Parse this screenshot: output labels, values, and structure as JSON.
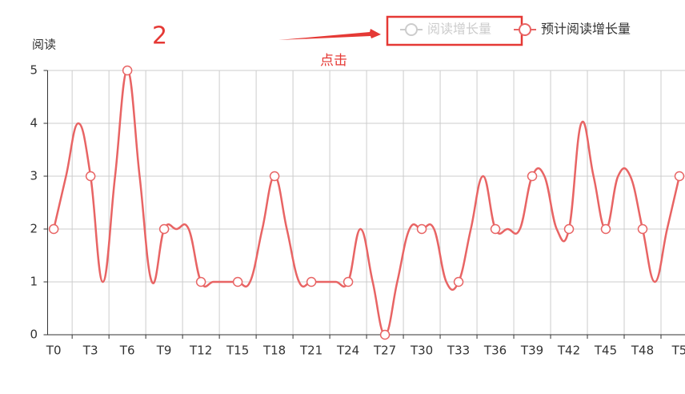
{
  "chart_data": {
    "type": "line",
    "y_axis_label": "阅读",
    "annotations": [
      "2",
      "点击"
    ],
    "categories": [
      "T0",
      null,
      null,
      "T3",
      null,
      null,
      "T6",
      null,
      null,
      "T9",
      null,
      null,
      "T12",
      null,
      null,
      "T15",
      null,
      null,
      "T18",
      null,
      null,
      "T21",
      null,
      null,
      "T24",
      null,
      null,
      "T27",
      null,
      null,
      "T30",
      null,
      null,
      "T33",
      null,
      null,
      "T36",
      null,
      null,
      "T39",
      null,
      null,
      "T42",
      null,
      null,
      "T45",
      null,
      null,
      "T48",
      null,
      null,
      "T5"
    ],
    "series": [
      {
        "name": "阅读增长量",
        "color": "#cccccc",
        "visible": false
      },
      {
        "name": "预计阅读增长量",
        "color": "#e86464",
        "visible": true,
        "values": [
          2,
          3,
          4,
          3,
          1,
          3,
          5,
          3,
          1,
          2,
          2,
          2,
          1,
          1,
          1,
          1,
          1,
          2,
          3,
          2,
          1,
          1,
          1,
          1,
          1,
          2,
          1,
          0,
          1,
          2,
          2,
          2,
          1,
          1,
          2,
          3,
          2,
          2,
          2,
          3,
          3,
          2,
          2,
          4,
          3,
          2,
          3,
          3,
          2,
          1,
          2,
          3
        ]
      }
    ],
    "ylim": [
      0,
      5
    ],
    "yticks": [
      0,
      1,
      2,
      3,
      4,
      5
    ],
    "grid": true
  }
}
